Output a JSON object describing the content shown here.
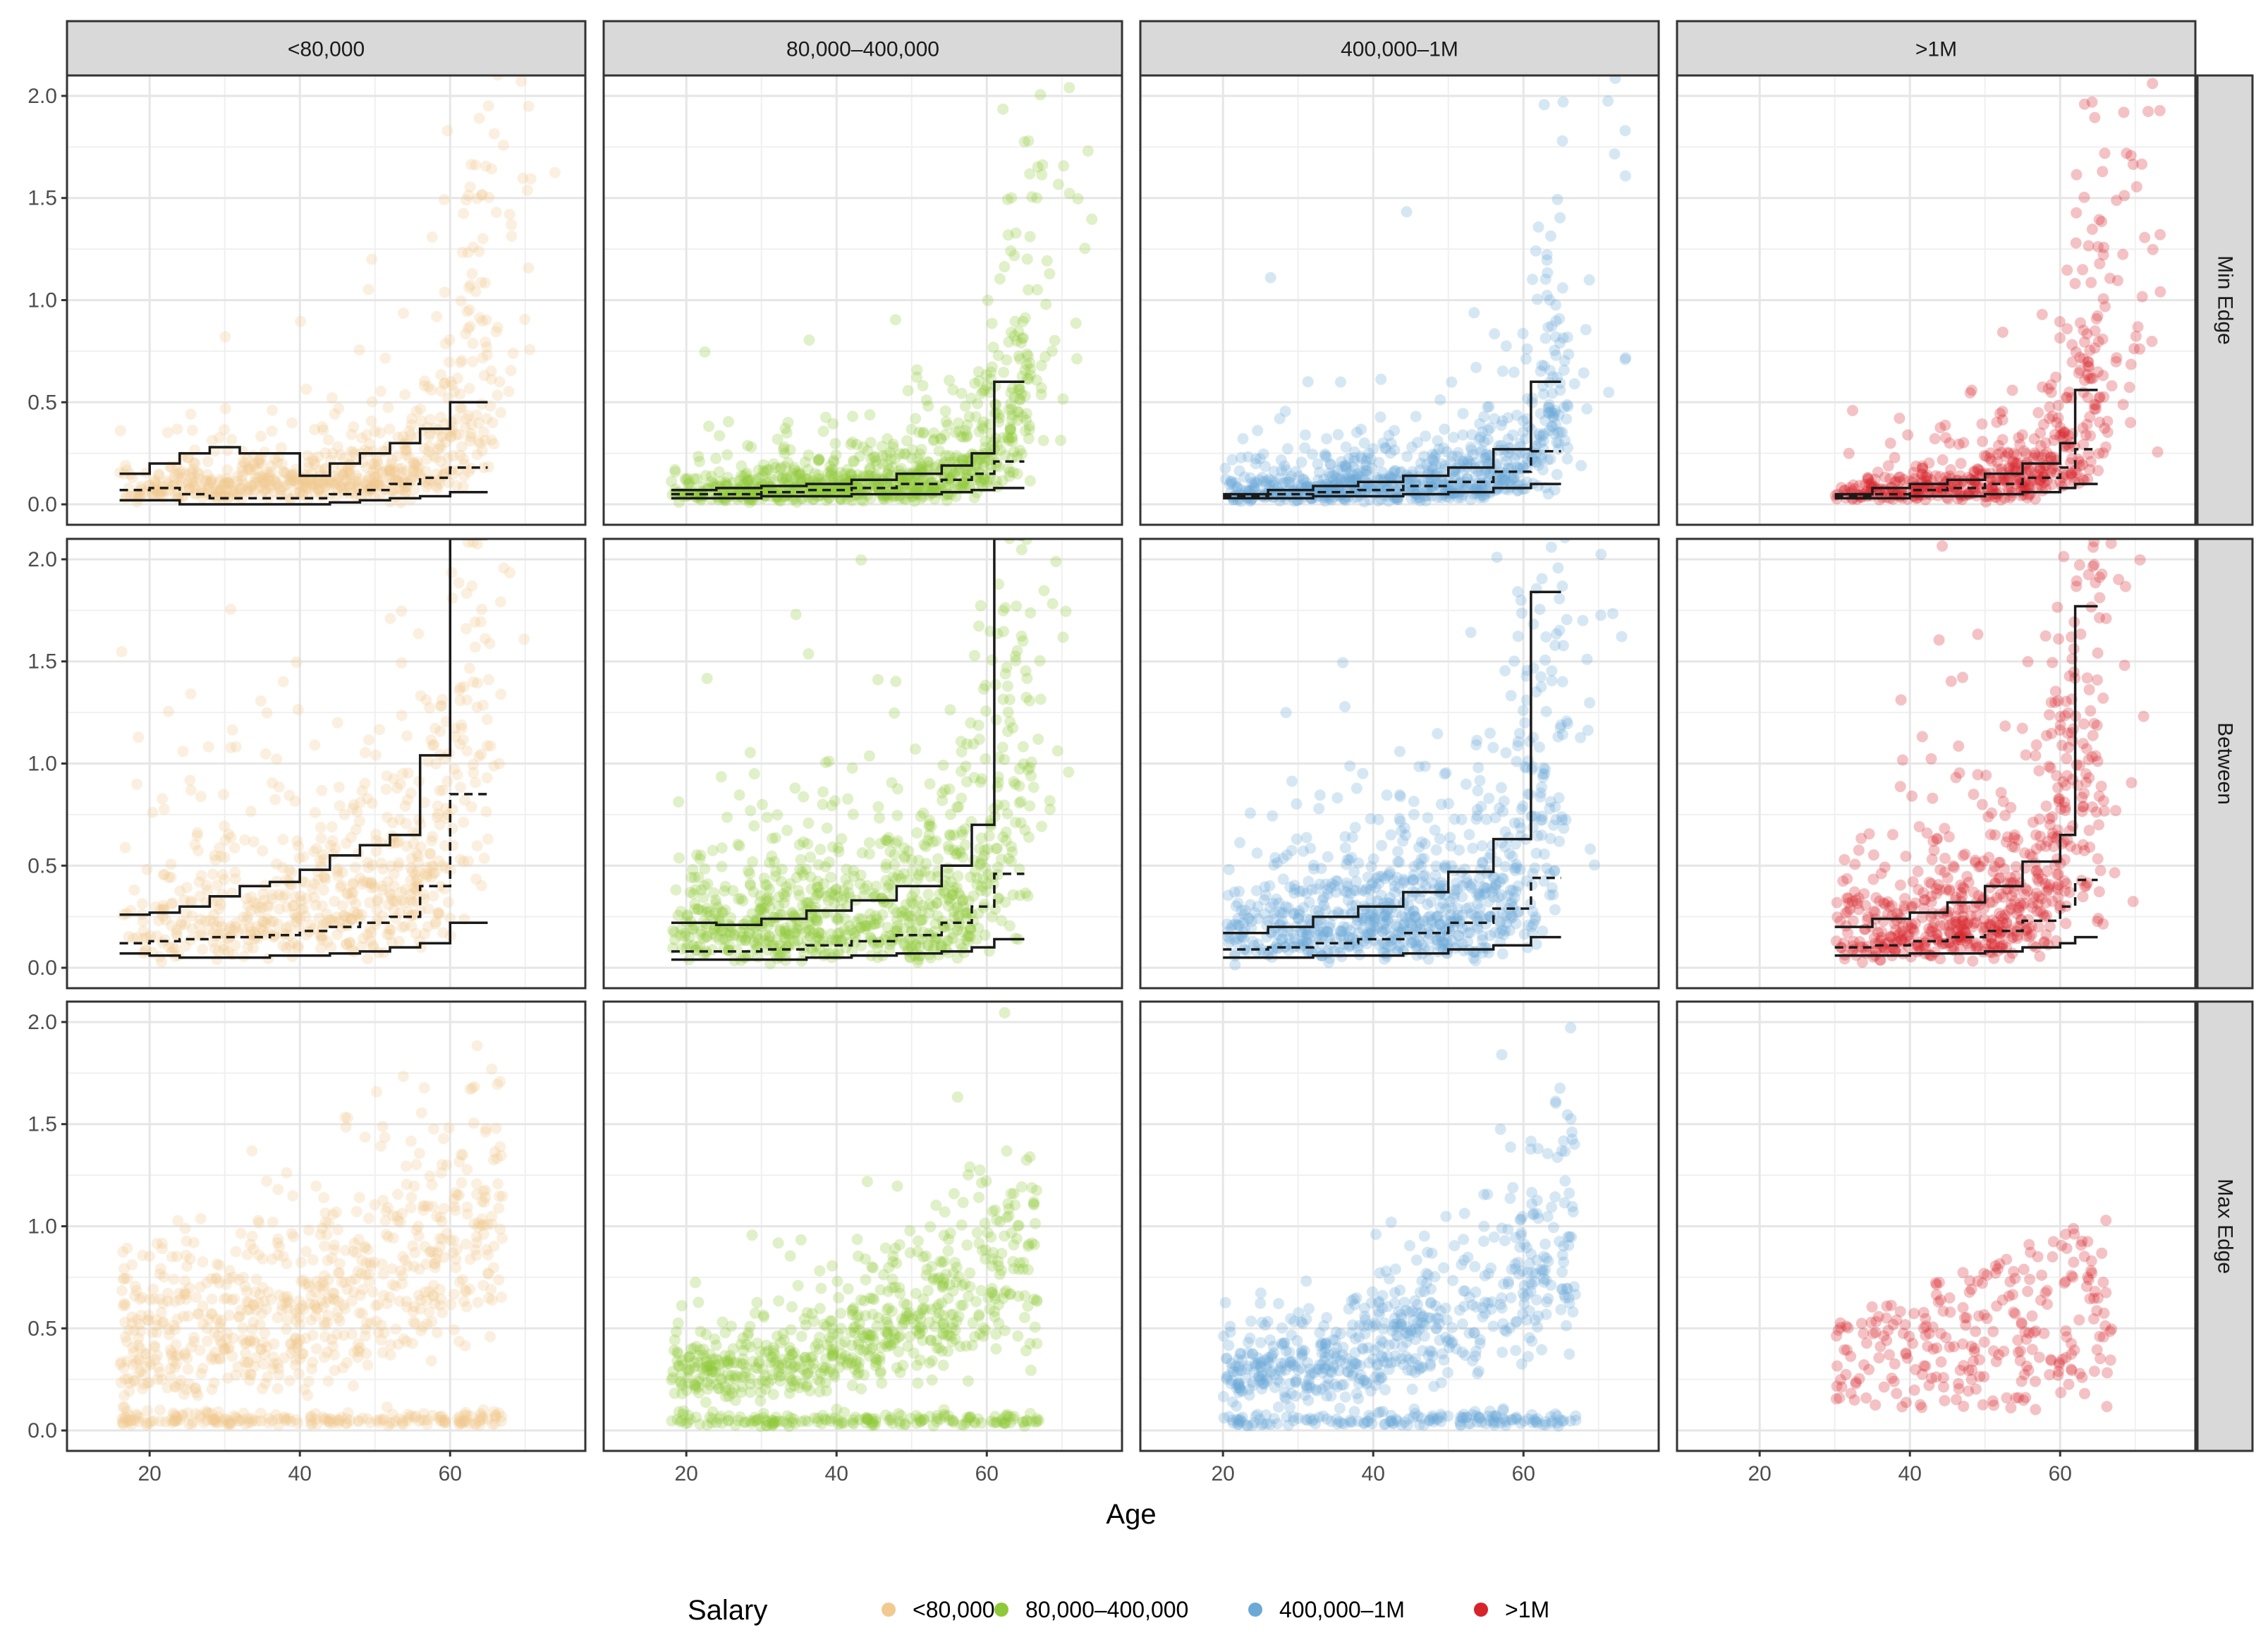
{
  "chart_data": {
    "type": "scatter",
    "facet_columns": [
      "<80,000",
      "80,000–400,000",
      "400,000–1M",
      ">1M"
    ],
    "facet_rows": [
      "Min Edge",
      "Between",
      "Max Edge"
    ],
    "xlabel": "Age",
    "ylabel": "",
    "xlim": [
      9,
      78
    ],
    "ylim": [
      -0.1,
      2.1
    ],
    "x_ticks": [
      20,
      40,
      60
    ],
    "y_ticks": [
      0.0,
      0.5,
      1.0,
      1.5,
      2.0
    ],
    "y_tick_labels": [
      "0.0",
      "0.5",
      "1.0",
      "1.5",
      "2.0"
    ],
    "grid": true,
    "legend": {
      "title": "Salary",
      "position": "bottom",
      "entries": [
        "<80,000",
        "80,000–400,000",
        "400,000–1M",
        ">1M"
      ]
    },
    "series_colors": [
      "#F2C98F",
      "#8FC93A",
      "#6BAAD7",
      "#D7232A"
    ],
    "quantile_lines": {
      "Min Edge": {
        "<80,000": {
          "ages": [
            16,
            20,
            24,
            28,
            32,
            36,
            40,
            44,
            48,
            52,
            56,
            60,
            65
          ],
          "upper": [
            0.15,
            0.2,
            0.25,
            0.28,
            0.25,
            0.25,
            0.14,
            0.2,
            0.25,
            0.3,
            0.37,
            0.5
          ],
          "median": [
            0.07,
            0.08,
            0.05,
            0.03,
            0.03,
            0.03,
            0.03,
            0.05,
            0.07,
            0.1,
            0.13,
            0.18
          ],
          "lower": [
            0.02,
            0.02,
            0.0,
            0.0,
            0.0,
            0.0,
            0.0,
            0.01,
            0.02,
            0.03,
            0.04,
            0.06
          ]
        },
        "80,000–400,000": {
          "ages": [
            18,
            24,
            30,
            36,
            42,
            48,
            54,
            58,
            61,
            65
          ],
          "upper": [
            0.07,
            0.08,
            0.09,
            0.1,
            0.12,
            0.15,
            0.19,
            0.25,
            0.6
          ],
          "median": [
            0.05,
            0.05,
            0.06,
            0.07,
            0.08,
            0.1,
            0.12,
            0.15,
            0.21
          ],
          "lower": [
            0.03,
            0.03,
            0.04,
            0.04,
            0.05,
            0.05,
            0.06,
            0.07,
            0.08
          ]
        },
        "400,000–1M": {
          "ages": [
            20,
            26,
            32,
            38,
            44,
            50,
            56,
            61,
            65
          ],
          "upper": [
            0.05,
            0.07,
            0.09,
            0.11,
            0.14,
            0.18,
            0.27,
            0.6
          ],
          "median": [
            0.04,
            0.05,
            0.06,
            0.07,
            0.09,
            0.11,
            0.16,
            0.26
          ],
          "lower": [
            0.03,
            0.03,
            0.04,
            0.04,
            0.05,
            0.06,
            0.08,
            0.1
          ]
        },
        ">1M": {
          "ages": [
            30,
            35,
            40,
            45,
            50,
            55,
            60,
            62,
            65
          ],
          "upper": [
            0.05,
            0.08,
            0.1,
            0.12,
            0.15,
            0.2,
            0.3,
            0.56
          ],
          "median": [
            0.04,
            0.05,
            0.07,
            0.08,
            0.1,
            0.13,
            0.18,
            0.27
          ],
          "lower": [
            0.03,
            0.03,
            0.04,
            0.04,
            0.05,
            0.06,
            0.08,
            0.1
          ]
        }
      },
      "Between": {
        "<80,000": {
          "ages": [
            16,
            20,
            24,
            28,
            32,
            36,
            40,
            44,
            48,
            52,
            56,
            60,
            65
          ],
          "upper": [
            0.26,
            0.27,
            0.3,
            0.35,
            0.4,
            0.42,
            0.48,
            0.55,
            0.6,
            0.65,
            1.04,
            2.1
          ],
          "median": [
            0.12,
            0.13,
            0.14,
            0.15,
            0.15,
            0.16,
            0.18,
            0.2,
            0.22,
            0.25,
            0.4,
            0.85
          ],
          "lower": [
            0.07,
            0.06,
            0.05,
            0.05,
            0.05,
            0.06,
            0.06,
            0.07,
            0.08,
            0.1,
            0.12,
            0.22
          ]
        },
        "80,000–400,000": {
          "ages": [
            18,
            24,
            30,
            36,
            42,
            48,
            54,
            58,
            61,
            65
          ],
          "upper": [
            0.22,
            0.21,
            0.24,
            0.28,
            0.33,
            0.4,
            0.5,
            0.7,
            2.1
          ],
          "median": [
            0.08,
            0.08,
            0.09,
            0.11,
            0.13,
            0.16,
            0.22,
            0.3,
            0.46
          ],
          "lower": [
            0.04,
            0.04,
            0.04,
            0.05,
            0.06,
            0.07,
            0.08,
            0.1,
            0.14
          ]
        },
        "400,000–1M": {
          "ages": [
            20,
            26,
            32,
            38,
            44,
            50,
            56,
            61,
            65
          ],
          "upper": [
            0.17,
            0.2,
            0.25,
            0.3,
            0.37,
            0.47,
            0.63,
            1.84
          ],
          "median": [
            0.09,
            0.1,
            0.12,
            0.14,
            0.17,
            0.22,
            0.29,
            0.44
          ],
          "lower": [
            0.05,
            0.05,
            0.06,
            0.06,
            0.07,
            0.09,
            0.11,
            0.15
          ]
        },
        ">1M": {
          "ages": [
            30,
            35,
            40,
            45,
            50,
            55,
            60,
            62,
            65
          ],
          "upper": [
            0.2,
            0.24,
            0.27,
            0.32,
            0.4,
            0.52,
            0.65,
            1.77
          ],
          "median": [
            0.1,
            0.11,
            0.13,
            0.15,
            0.18,
            0.23,
            0.3,
            0.43
          ],
          "lower": [
            0.06,
            0.06,
            0.07,
            0.07,
            0.08,
            0.1,
            0.12,
            0.15
          ]
        }
      }
    },
    "scatter_note": "Semi-transparent points per panel; Min Edge and Between rows clustered near 0-0.5 rising steeply after age 55; Max Edge row shows curved bands between 0 and 2."
  }
}
